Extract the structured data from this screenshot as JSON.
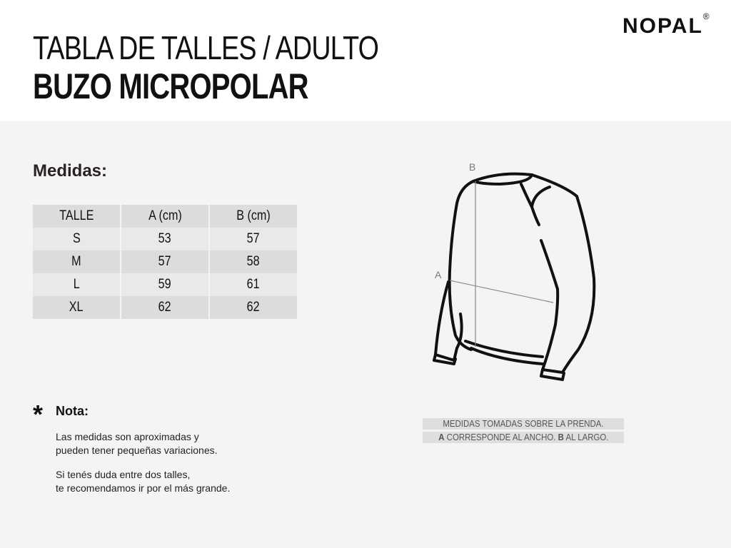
{
  "header": {
    "title_line1": "TABLA DE TALLES / ADULTO",
    "title_line2": "BUZO MICROPOLAR",
    "brand": "NOPAL",
    "brand_mark": "®"
  },
  "measures": {
    "heading": "Medidas:",
    "columns": [
      "TALLE",
      "A (cm)",
      "B (cm)"
    ],
    "rows": [
      [
        "S",
        "53",
        "57"
      ],
      [
        "M",
        "57",
        "58"
      ],
      [
        "L",
        "59",
        "61"
      ],
      [
        "XL",
        "62",
        "62"
      ]
    ]
  },
  "note": {
    "star": "*",
    "heading": "Nota:",
    "p1_l1": "Las medidas son aproximadas y",
    "p1_l2": "pueden tener pequeñas variaciones.",
    "p2_l1": "Si tenés duda entre dos talles,",
    "p2_l2": "te recomendamos ir por el más grande."
  },
  "diagram": {
    "label_a": "A",
    "label_b": "B",
    "caption1": "MEDIDAS TOMADAS SOBRE LA PRENDA.",
    "caption2_a": "A",
    "caption2_mid": " CORRESPONDE AL ANCHO. ",
    "caption2_b": "B",
    "caption2_end": " AL LARGO."
  }
}
